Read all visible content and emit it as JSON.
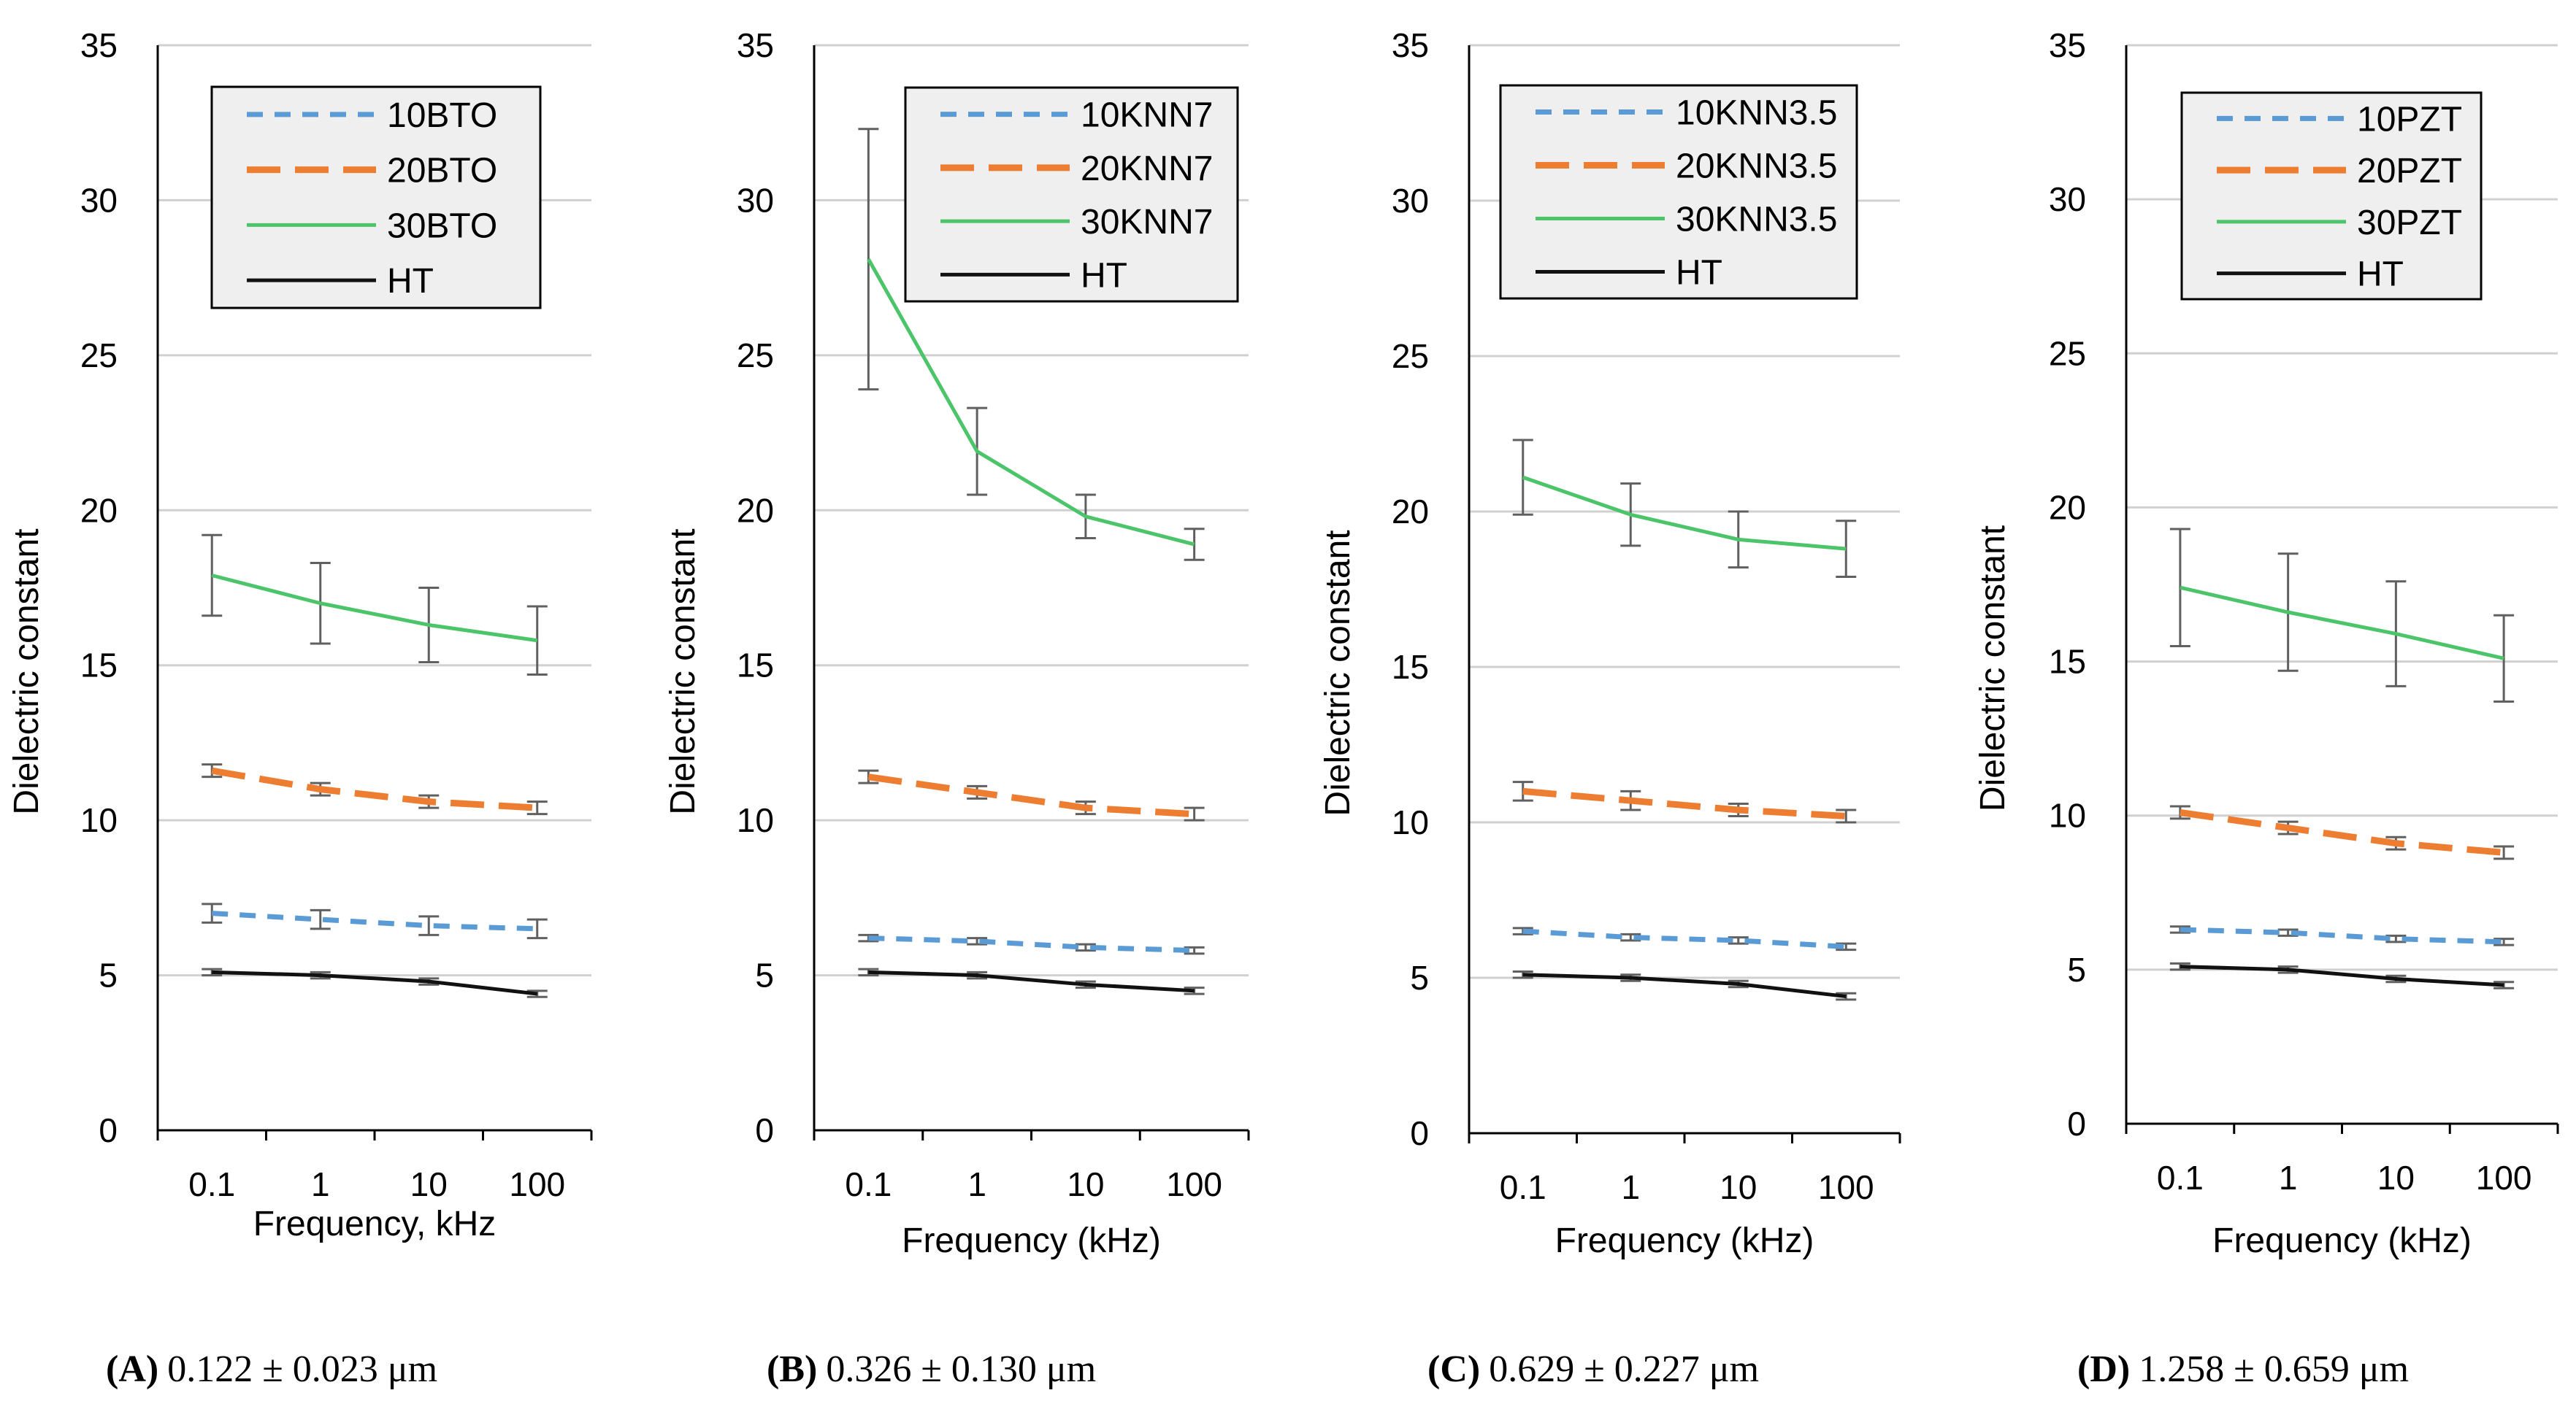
{
  "chart_data": [
    {
      "type": "line",
      "panel": "A",
      "caption_label": "(A)",
      "caption_text": "0.122 ± 0.023 μm",
      "xlabel": "Frequency, kHz",
      "ylabel": "Dielectric constant",
      "x": [
        0.1,
        1,
        10,
        100
      ],
      "x_tick_labels": [
        "0.1",
        "1",
        "10",
        "100"
      ],
      "ylim": [
        0,
        35
      ],
      "y_ticks": [
        0,
        5,
        10,
        15,
        20,
        25,
        30,
        35
      ],
      "series": [
        {
          "name": "10BTO",
          "style": "dash-short",
          "color": "#5B9BD5",
          "values": [
            7.0,
            6.8,
            6.6,
            6.5
          ],
          "errors": [
            0.3,
            0.3,
            0.3,
            0.3
          ]
        },
        {
          "name": "20BTO",
          "style": "dash-long",
          "color": "#ED7D31",
          "values": [
            11.6,
            11.0,
            10.6,
            10.4
          ],
          "errors": [
            0.2,
            0.2,
            0.2,
            0.2
          ]
        },
        {
          "name": "30BTO",
          "style": "solid",
          "color": "#4CC46A",
          "values": [
            17.9,
            17.0,
            16.3,
            15.8
          ],
          "errors": [
            1.3,
            1.3,
            1.2,
            1.1
          ]
        },
        {
          "name": "HT",
          "style": "solid",
          "color": "#111111",
          "values": [
            5.1,
            5.0,
            4.8,
            4.4
          ],
          "errors": [
            0.1,
            0.1,
            0.1,
            0.1
          ]
        }
      ]
    },
    {
      "type": "line",
      "panel": "B",
      "caption_label": "(B)",
      "caption_text": "0.326 ± 0.130 μm",
      "xlabel": "Frequency (kHz)",
      "ylabel": "Dielectric constant",
      "x": [
        0.1,
        1,
        10,
        100
      ],
      "x_tick_labels": [
        "0.1",
        "1",
        "10",
        "100"
      ],
      "ylim": [
        0,
        35
      ],
      "y_ticks": [
        0,
        5,
        10,
        15,
        20,
        25,
        30,
        35
      ],
      "series": [
        {
          "name": "10KNN7",
          "style": "dash-short",
          "color": "#5B9BD5",
          "values": [
            6.2,
            6.1,
            5.9,
            5.8
          ],
          "errors": [
            0.1,
            0.1,
            0.1,
            0.1
          ]
        },
        {
          "name": "20KNN7",
          "style": "dash-long",
          "color": "#ED7D31",
          "values": [
            11.4,
            10.9,
            10.4,
            10.2
          ],
          "errors": [
            0.2,
            0.2,
            0.2,
            0.2
          ]
        },
        {
          "name": "30KNN7",
          "style": "solid",
          "color": "#4CC46A",
          "values": [
            28.1,
            21.9,
            19.8,
            18.9
          ],
          "errors": [
            4.2,
            1.4,
            0.7,
            0.5
          ]
        },
        {
          "name": "HT",
          "style": "solid",
          "color": "#111111",
          "values": [
            5.1,
            5.0,
            4.7,
            4.5
          ],
          "errors": [
            0.1,
            0.1,
            0.1,
            0.1
          ]
        }
      ]
    },
    {
      "type": "line",
      "panel": "C",
      "caption_label": "(C)",
      "caption_text": "0.629 ± 0.227 μm",
      "xlabel": "Frequency (kHz)",
      "ylabel": "Dielectric constant",
      "x": [
        0.1,
        1,
        10,
        100
      ],
      "x_tick_labels": [
        "0.1",
        "1",
        "10",
        "100"
      ],
      "ylim": [
        0,
        35
      ],
      "y_ticks": [
        0,
        5,
        10,
        15,
        20,
        25,
        30,
        35
      ],
      "series": [
        {
          "name": "10KNN3.5",
          "style": "dash-short",
          "color": "#5B9BD5",
          "values": [
            6.5,
            6.3,
            6.2,
            6.0
          ],
          "errors": [
            0.1,
            0.1,
            0.1,
            0.1
          ]
        },
        {
          "name": "20KNN3.5",
          "style": "dash-long",
          "color": "#ED7D31",
          "values": [
            11.0,
            10.7,
            10.4,
            10.2
          ],
          "errors": [
            0.3,
            0.3,
            0.2,
            0.2
          ]
        },
        {
          "name": "30KNN3.5",
          "style": "solid",
          "color": "#4CC46A",
          "values": [
            21.1,
            19.9,
            19.1,
            18.8
          ],
          "errors": [
            1.2,
            1.0,
            0.9,
            0.9
          ]
        },
        {
          "name": "HT",
          "style": "solid",
          "color": "#111111",
          "values": [
            5.1,
            5.0,
            4.8,
            4.4
          ],
          "errors": [
            0.1,
            0.1,
            0.1,
            0.1
          ]
        }
      ]
    },
    {
      "type": "line",
      "panel": "D",
      "caption_label": "(D)",
      "caption_text": "1.258 ± 0.659 μm",
      "xlabel": "Frequency (kHz)",
      "ylabel": "Dielectric constant",
      "x": [
        0.1,
        1,
        10,
        100
      ],
      "x_tick_labels": [
        "0.1",
        "1",
        "10",
        "100"
      ],
      "ylim": [
        0,
        35
      ],
      "y_ticks": [
        0,
        5,
        10,
        15,
        20,
        25,
        30,
        35
      ],
      "series": [
        {
          "name": "10PZT",
          "style": "dash-short",
          "color": "#5B9BD5",
          "values": [
            6.3,
            6.2,
            6.0,
            5.9
          ],
          "errors": [
            0.1,
            0.1,
            0.1,
            0.1
          ]
        },
        {
          "name": "20PZT",
          "style": "dash-long",
          "color": "#ED7D31",
          "values": [
            10.1,
            9.6,
            9.1,
            8.8
          ],
          "errors": [
            0.2,
            0.2,
            0.2,
            0.2
          ]
        },
        {
          "name": "30PZT",
          "style": "solid",
          "color": "#4CC46A",
          "values": [
            17.4,
            16.6,
            15.9,
            15.1
          ],
          "errors": [
            1.9,
            1.9,
            1.7,
            1.4
          ]
        },
        {
          "name": "HT",
          "style": "solid",
          "color": "#111111",
          "values": [
            5.1,
            5.0,
            4.7,
            4.5
          ],
          "errors": [
            0.1,
            0.1,
            0.1,
            0.1
          ]
        }
      ]
    }
  ]
}
